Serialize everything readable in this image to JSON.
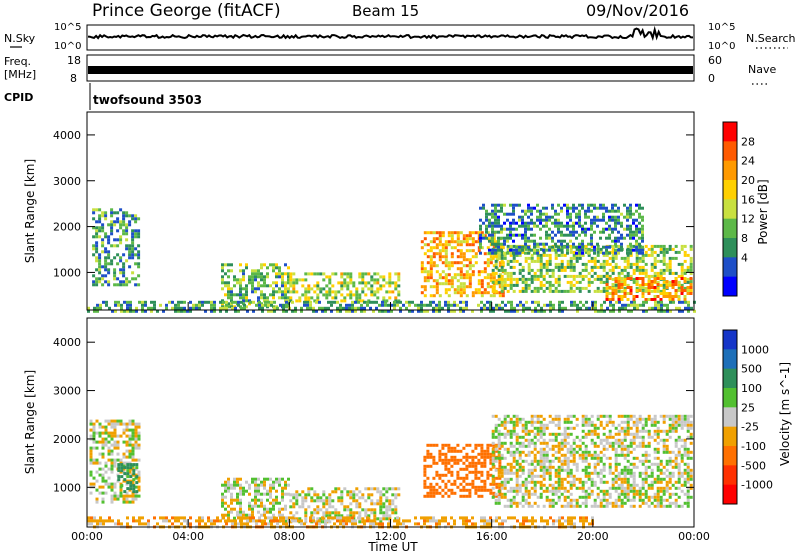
{
  "header": {
    "station": "Prince George (fitACF)",
    "beam": "Beam 15",
    "date": "09/Nov/2016"
  },
  "noise_panel": {
    "left_label": "N.Sky",
    "right_label": "N.Search",
    "left_ticks": [
      "10^5",
      "10^0"
    ],
    "right_ticks": [
      "10^5",
      "10^0"
    ]
  },
  "freq_panel": {
    "left_label_line1": "Freq.",
    "left_label_line2": "[MHz]",
    "right_label": "Nave",
    "left_ticks": [
      "18",
      "8"
    ],
    "right_ticks": [
      "60",
      "0"
    ]
  },
  "cpid_panel": {
    "label": "CPID",
    "program": "twofsound 3503"
  },
  "x_axis": {
    "label": "Time UT",
    "ticks": [
      "00:00",
      "04:00",
      "08:00",
      "12:00",
      "16:00",
      "20:00",
      "00:00"
    ]
  },
  "power_colorbar": {
    "label": "Power [dB]",
    "ticks": [
      "28",
      "24",
      "20",
      "16",
      "12",
      "8",
      "4"
    ],
    "colors": [
      "#ff0000",
      "#ff5a00",
      "#ff9a00",
      "#ffd000",
      "#c8e040",
      "#5cb848",
      "#2e8f5a",
      "#1e4fc8",
      "#0000ff"
    ]
  },
  "velocity_colorbar": {
    "label": "Velocity [m s^-1]",
    "ticks": [
      "1000",
      "500",
      "100",
      "25",
      "-25",
      "-100",
      "-500",
      "-1000"
    ],
    "colors": [
      "#1535c8",
      "#1d6fb8",
      "#2e8f5a",
      "#52c030",
      "#c8c8c8",
      "#f0a000",
      "#ff7000",
      "#ff3000",
      "#ff0000"
    ]
  },
  "chart_data": [
    {
      "type": "heatmap",
      "title": "Power",
      "xlabel": "Time UT",
      "ylabel": "Slant Range [km]",
      "xlim": [
        0,
        24
      ],
      "ylim": [
        180,
        4500
      ],
      "y_ticks": [
        1000,
        2000,
        3000,
        4000
      ],
      "colorbar_range": [
        0,
        32
      ],
      "echo_regions": [
        {
          "t0": 0.2,
          "t1": 2.0,
          "r0": 700,
          "r1": 2400,
          "level": 9
        },
        {
          "t0": 5.3,
          "t1": 8.0,
          "r0": 250,
          "r1": 1200,
          "level": 12
        },
        {
          "t0": 8.0,
          "t1": 12.3,
          "r0": 350,
          "r1": 1000,
          "level": 16
        },
        {
          "t0": 13.2,
          "t1": 16.5,
          "r0": 500,
          "r1": 1900,
          "level": 22
        },
        {
          "t0": 16.0,
          "t1": 23.9,
          "r0": 600,
          "r1": 1600,
          "level": 14
        },
        {
          "t0": 20.5,
          "t1": 23.9,
          "r0": 400,
          "r1": 900,
          "level": 24
        },
        {
          "t0": 15.5,
          "t1": 22.0,
          "r0": 1400,
          "r1": 2500,
          "level": 8
        },
        {
          "t0": 0.0,
          "t1": 24.0,
          "r0": 180,
          "r1": 380,
          "level": 10
        }
      ]
    },
    {
      "type": "heatmap",
      "title": "Velocity",
      "xlabel": "Time UT",
      "ylabel": "Slant Range [km]",
      "xlim": [
        0,
        24
      ],
      "ylim": [
        180,
        4500
      ],
      "y_ticks": [
        1000,
        2000,
        3000,
        4000
      ],
      "colorbar_range": [
        -1000,
        1000
      ],
      "echo_regions": [
        {
          "t0": 0.1,
          "t1": 2.0,
          "r0": 700,
          "r1": 2400,
          "velocity": 0
        },
        {
          "t0": 1.2,
          "t1": 2.0,
          "r0": 900,
          "r1": 1500,
          "velocity": 150
        },
        {
          "t0": 5.3,
          "t1": 8.0,
          "r0": 300,
          "r1": 1200,
          "velocity": 0
        },
        {
          "t0": 8.0,
          "t1": 12.3,
          "r0": 300,
          "r1": 1000,
          "velocity": 0
        },
        {
          "t0": 13.3,
          "t1": 16.3,
          "r0": 800,
          "r1": 1900,
          "velocity": -200
        },
        {
          "t0": 16.0,
          "t1": 23.9,
          "r0": 600,
          "r1": 2500,
          "velocity": 0
        },
        {
          "t0": 0.0,
          "t1": 20.0,
          "r0": 180,
          "r1": 400,
          "velocity": -60
        }
      ]
    }
  ]
}
